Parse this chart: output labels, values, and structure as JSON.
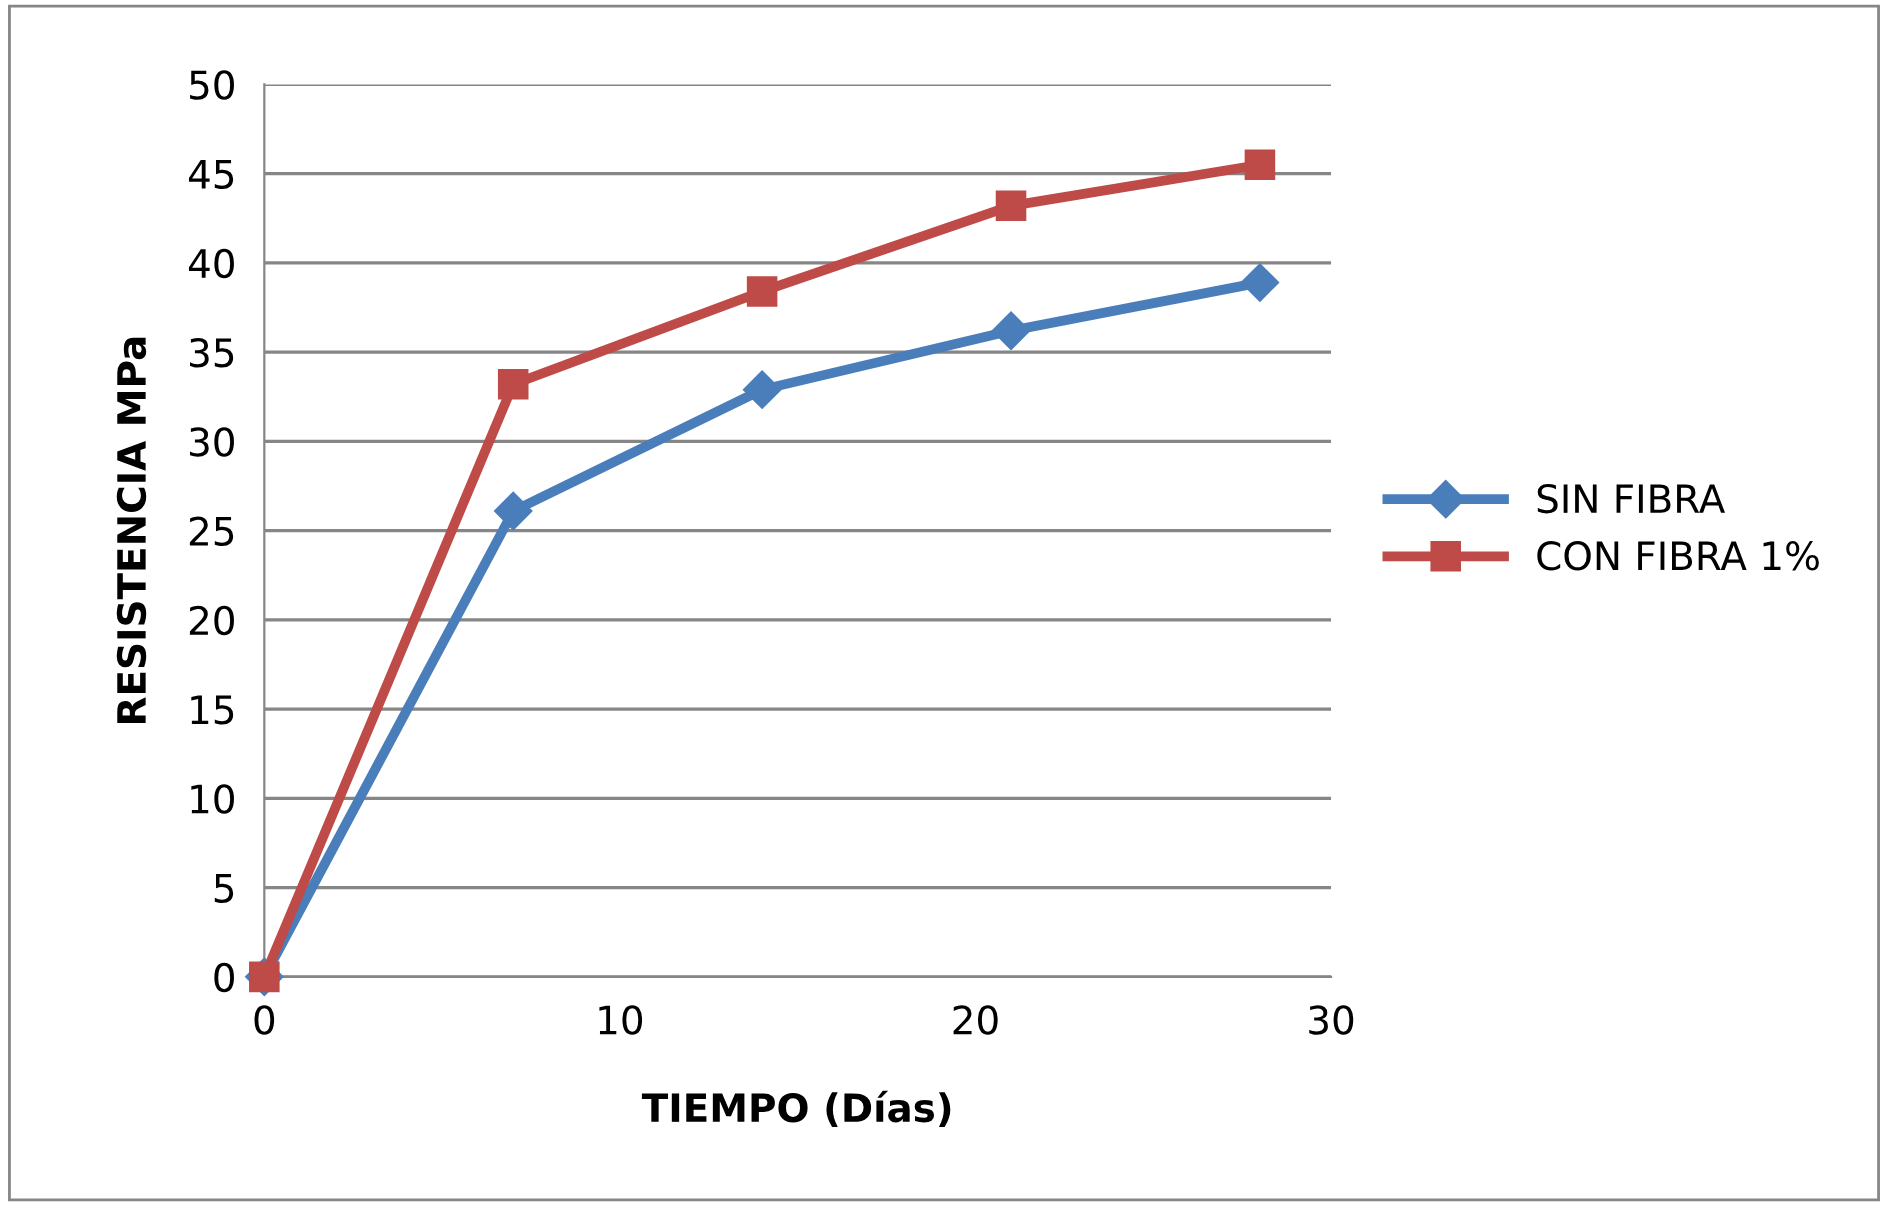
{
  "chart_data": {
    "type": "line",
    "xlabel": "TIEMPO (Días)",
    "ylabel": "RESISTENCIA MPa",
    "xlim": [
      0,
      30
    ],
    "xticks": [
      0,
      10,
      20,
      30
    ],
    "ylim": [
      0,
      50
    ],
    "yticks": [
      0,
      5,
      10,
      15,
      20,
      25,
      30,
      35,
      40,
      45,
      50
    ],
    "grid": "y",
    "legend": "right",
    "line_style": "solid",
    "series": [
      {
        "name": "SIN FIBRA",
        "color": "#4a7ebb",
        "marker": "diamond",
        "x": [
          0,
          7,
          14,
          21,
          28
        ],
        "values": [
          0,
          26.1,
          32.9,
          36.2,
          38.9
        ]
      },
      {
        "name": "CON FIBRA 1%",
        "color": "#be4b48",
        "marker": "square",
        "x": [
          0,
          7,
          14,
          21,
          28
        ],
        "values": [
          0,
          33.2,
          38.4,
          43.2,
          45.5
        ]
      }
    ]
  }
}
